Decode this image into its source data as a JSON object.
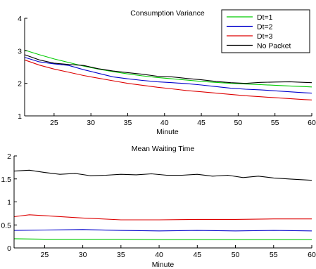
{
  "chart_data": [
    {
      "type": "line",
      "title": "Consumption Variance",
      "xlabel": "Minute",
      "ylabel": "",
      "xlim": [
        21,
        60
      ],
      "ylim": [
        1,
        4
      ],
      "xticks": [
        25,
        30,
        35,
        40,
        45,
        50,
        55,
        60
      ],
      "yticks": [
        1,
        2,
        3,
        4
      ],
      "legend": {
        "placement": "top-right"
      },
      "series": [
        {
          "name": "Dt=1",
          "color": "#00cc00",
          "x": [
            21,
            23,
            25,
            27,
            29,
            31,
            33,
            35,
            37,
            39,
            41,
            43,
            45,
            47,
            49,
            51,
            53,
            55,
            57,
            59,
            60
          ],
          "y": [
            3.02,
            2.88,
            2.75,
            2.64,
            2.53,
            2.44,
            2.36,
            2.29,
            2.23,
            2.18,
            2.14,
            2.1,
            2.06,
            2.03,
            2.0,
            1.98,
            1.96,
            1.94,
            1.92,
            1.9,
            1.89
          ]
        },
        {
          "name": "Dt=2",
          "color": "#0000cc",
          "x": [
            21,
            23,
            25,
            27,
            29,
            31,
            33,
            35,
            37,
            39,
            41,
            43,
            45,
            47,
            49,
            51,
            53,
            55,
            57,
            59,
            60
          ],
          "y": [
            2.8,
            2.66,
            2.6,
            2.55,
            2.42,
            2.31,
            2.2,
            2.14,
            2.09,
            2.05,
            2.02,
            1.99,
            1.95,
            1.9,
            1.85,
            1.82,
            1.8,
            1.77,
            1.74,
            1.71,
            1.7
          ]
        },
        {
          "name": "Dt=3",
          "color": "#dd0000",
          "x": [
            21,
            23,
            25,
            27,
            29,
            31,
            33,
            35,
            37,
            39,
            41,
            43,
            45,
            47,
            49,
            51,
            53,
            55,
            57,
            59,
            60
          ],
          "y": [
            2.72,
            2.56,
            2.44,
            2.34,
            2.24,
            2.16,
            2.08,
            2.0,
            1.94,
            1.88,
            1.83,
            1.78,
            1.74,
            1.7,
            1.66,
            1.62,
            1.59,
            1.56,
            1.53,
            1.5,
            1.49
          ]
        },
        {
          "name": "No Packet",
          "color": "#000000",
          "x": [
            21,
            23,
            25,
            27,
            29,
            31,
            33,
            35,
            37,
            39,
            41,
            43,
            45,
            47,
            49,
            51,
            53,
            55,
            57,
            59,
            60
          ],
          "y": [
            2.88,
            2.72,
            2.62,
            2.58,
            2.55,
            2.45,
            2.38,
            2.33,
            2.28,
            2.22,
            2.2,
            2.15,
            2.11,
            2.06,
            2.02,
            2.0,
            2.03,
            2.04,
            2.05,
            2.03,
            2.02
          ]
        }
      ]
    },
    {
      "type": "line",
      "title": "Mean Waiting Time",
      "xlabel": "Minute",
      "ylabel": "",
      "xlim": [
        21,
        60
      ],
      "ylim": [
        0,
        2
      ],
      "xticks": [
        25,
        30,
        35,
        40,
        45,
        50,
        55,
        60
      ],
      "yticks": [
        0,
        0.5,
        1,
        1.5,
        2
      ],
      "series": [
        {
          "name": "Dt=1",
          "color": "#00cc00",
          "x": [
            21,
            25,
            30,
            35,
            40,
            45,
            50,
            55,
            60
          ],
          "y": [
            0.2,
            0.19,
            0.19,
            0.19,
            0.18,
            0.18,
            0.18,
            0.18,
            0.18
          ]
        },
        {
          "name": "Dt=2",
          "color": "#0000cc",
          "x": [
            21,
            25,
            30,
            35,
            40,
            45,
            50,
            55,
            60
          ],
          "y": [
            0.38,
            0.39,
            0.4,
            0.38,
            0.37,
            0.38,
            0.37,
            0.38,
            0.37
          ]
        },
        {
          "name": "Dt=3",
          "color": "#dd0000",
          "x": [
            21,
            23,
            25,
            30,
            35,
            40,
            45,
            50,
            55,
            60
          ],
          "y": [
            0.68,
            0.72,
            0.7,
            0.65,
            0.61,
            0.61,
            0.62,
            0.62,
            0.63,
            0.63
          ]
        },
        {
          "name": "No Packet",
          "color": "#000000",
          "x": [
            21,
            23,
            25,
            27,
            29,
            31,
            33,
            35,
            37,
            39,
            41,
            43,
            45,
            47,
            49,
            51,
            53,
            55,
            57,
            59,
            60
          ],
          "y": [
            1.67,
            1.69,
            1.64,
            1.6,
            1.62,
            1.57,
            1.58,
            1.6,
            1.59,
            1.61,
            1.58,
            1.58,
            1.6,
            1.56,
            1.58,
            1.53,
            1.56,
            1.52,
            1.5,
            1.48,
            1.47
          ]
        }
      ]
    }
  ]
}
